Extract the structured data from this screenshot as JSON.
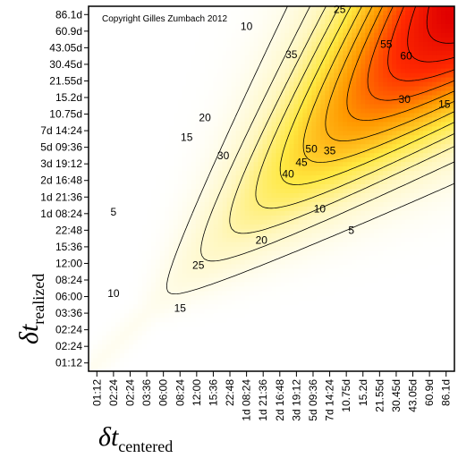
{
  "chart_data": {
    "type": "heatmap",
    "title": "",
    "copyright": "Copyright Gilles Zumbach 2012",
    "xlabel": {
      "symbol": "δt",
      "subscript": "centered"
    },
    "ylabel": {
      "symbol": "δt",
      "subscript": "realized"
    },
    "x_ticks": [
      "01:12",
      "02:24",
      "02:24",
      "03:36",
      "06:00",
      "08:24",
      "12:00",
      "15:36",
      "22:48",
      "1d 08:24",
      "1d 21:36",
      "2d 16:48",
      "3d 19:12",
      "5d 09:36",
      "7d 14:24",
      "10.75d",
      "15.2d",
      "21.55d",
      "30.45d",
      "43.05d",
      "60.9d",
      "86.1d"
    ],
    "y_ticks": [
      "01:12",
      "02:24",
      "02:24",
      "03:36",
      "06:00",
      "08:24",
      "12:00",
      "15:36",
      "22:48",
      "1d 08:24",
      "1d 21:36",
      "2d 16:48",
      "3d 19:12",
      "5d 09:36",
      "7d 14:24",
      "10.75d",
      "15.2d",
      "21.55d",
      "30.45d",
      "43.05d",
      "60.9d",
      "86.1d"
    ],
    "contour_levels": [
      5,
      10,
      15,
      20,
      25,
      30,
      35,
      40,
      45,
      50,
      55,
      60
    ],
    "contour_labels": [
      {
        "text": "5",
        "x": 1.0,
        "y": 9.1
      },
      {
        "text": "5",
        "x": 15.3,
        "y": 8.0
      },
      {
        "text": "10",
        "x": 1.0,
        "y": 4.2
      },
      {
        "text": "10",
        "x": 9.0,
        "y": 20.3
      },
      {
        "text": "10",
        "x": 13.4,
        "y": 9.3
      },
      {
        "text": "15",
        "x": 5.0,
        "y": 3.3
      },
      {
        "text": "15",
        "x": 5.4,
        "y": 13.6
      },
      {
        "text": "15",
        "x": 20.9,
        "y": 15.6
      },
      {
        "text": "20",
        "x": 6.5,
        "y": 14.8
      },
      {
        "text": "20",
        "x": 9.9,
        "y": 7.4
      },
      {
        "text": "25",
        "x": 6.1,
        "y": 5.9
      },
      {
        "text": "25",
        "x": 14.6,
        "y": 21.3
      },
      {
        "text": "30",
        "x": 7.6,
        "y": 12.5
      },
      {
        "text": "30",
        "x": 18.5,
        "y": 15.9
      },
      {
        "text": "35",
        "x": 11.7,
        "y": 18.6
      },
      {
        "text": "35",
        "x": 14.0,
        "y": 12.8
      },
      {
        "text": "40",
        "x": 11.5,
        "y": 11.4
      },
      {
        "text": "45",
        "x": 12.3,
        "y": 12.1
      },
      {
        "text": "50",
        "x": 12.9,
        "y": 12.9
      },
      {
        "text": "55",
        "x": 17.4,
        "y": 19.2
      },
      {
        "text": "60",
        "x": 18.6,
        "y": 18.5
      }
    ],
    "colormap": [
      "#ffffff",
      "#fff7c0",
      "#ffe840",
      "#ff9a00",
      "#ff2a00",
      "#e00000"
    ],
    "value_range": [
      0,
      65
    ],
    "grid": false
  }
}
